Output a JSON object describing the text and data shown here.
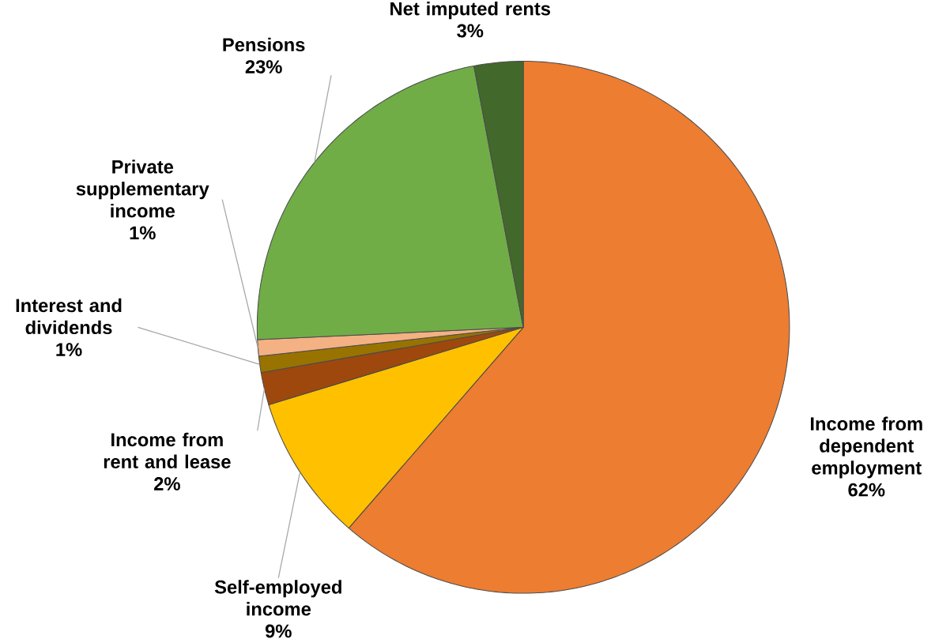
{
  "chart_data": {
    "type": "pie",
    "categories": [
      "Income from dependent employment",
      "Self-employed income",
      "Income from rent and lease",
      "Interest and dividends",
      "Private supplementary income",
      "Pensions",
      "Net imputed rents"
    ],
    "values": [
      62,
      9,
      2,
      1,
      1,
      23,
      3
    ],
    "value_labels": [
      "62%",
      "9%",
      "2%",
      "1%",
      "1%",
      "23%",
      "3%"
    ],
    "colors": [
      "#ed7d31",
      "#ffc000",
      "#9e480e",
      "#997300",
      "#f4b183",
      "#70ad47",
      "#43682b"
    ]
  }
}
